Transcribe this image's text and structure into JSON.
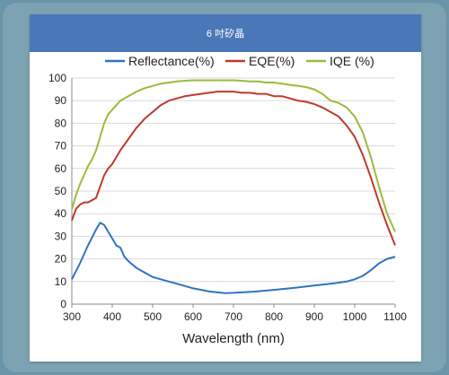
{
  "header": {
    "title": "6 吋矽晶"
  },
  "colors": {
    "header_bg": "#4a77b8",
    "reflectance": "#2e74c0",
    "eqe": "#c0392b",
    "iqe": "#9bbb3b"
  },
  "chart_data": {
    "type": "line",
    "title": "6 吋矽晶",
    "xlabel": "Wavelength (nm)",
    "ylabel": "",
    "xlim": [
      300,
      1100
    ],
    "ylim": [
      0,
      100
    ],
    "x_ticks": [
      "300",
      "400",
      "500",
      "600",
      "700",
      "800",
      "900",
      "1000",
      "1100"
    ],
    "y_ticks": [
      "0",
      "10",
      "20",
      "30",
      "40",
      "50",
      "60",
      "70",
      "80",
      "90",
      "100"
    ],
    "grid": true,
    "legend": "top",
    "series": [
      {
        "name": "Reflectance(%)",
        "color": "#2e74c0",
        "x": [
          300,
          320,
          340,
          360,
          370,
          380,
          390,
          400,
          410,
          420,
          430,
          440,
          460,
          480,
          500,
          520,
          540,
          560,
          580,
          600,
          620,
          640,
          660,
          680,
          700,
          750,
          800,
          850,
          900,
          950,
          980,
          1000,
          1020,
          1040,
          1060,
          1080,
          1100
        ],
        "y": [
          11,
          18,
          26,
          33,
          36,
          35,
          32,
          29,
          26,
          25,
          21,
          19,
          16,
          14,
          12,
          11,
          10,
          9,
          8,
          7,
          6.3,
          5.6,
          5.2,
          4.9,
          5,
          5.5,
          6.3,
          7.2,
          8.2,
          9.2,
          10,
          11,
          12.5,
          15,
          18,
          20,
          21
        ]
      },
      {
        "name": "EQE(%)",
        "color": "#c0392b",
        "x": [
          300,
          310,
          320,
          330,
          340,
          350,
          360,
          370,
          380,
          390,
          400,
          420,
          440,
          460,
          480,
          500,
          520,
          540,
          560,
          580,
          600,
          620,
          640,
          660,
          680,
          700,
          720,
          740,
          760,
          780,
          800,
          820,
          840,
          860,
          880,
          900,
          920,
          940,
          960,
          980,
          1000,
          1020,
          1040,
          1060,
          1080,
          1100
        ],
        "y": [
          37,
          42,
          44,
          45,
          45,
          46,
          47,
          52,
          57,
          60,
          62,
          68,
          73,
          78,
          82,
          85,
          88,
          90,
          91,
          92,
          92.5,
          93,
          93.5,
          94,
          94,
          94,
          93.5,
          93.5,
          93,
          93,
          92,
          92,
          91,
          90,
          89.5,
          88.5,
          87,
          85,
          83,
          79,
          74,
          66,
          56,
          45,
          35,
          26
        ]
      },
      {
        "name": "IQE (%)",
        "color": "#9bbb3b",
        "x": [
          300,
          310,
          320,
          330,
          340,
          350,
          360,
          370,
          380,
          390,
          400,
          420,
          440,
          460,
          480,
          500,
          520,
          540,
          560,
          580,
          600,
          620,
          640,
          660,
          680,
          700,
          720,
          740,
          760,
          780,
          800,
          820,
          840,
          860,
          880,
          900,
          920,
          940,
          960,
          980,
          1000,
          1020,
          1040,
          1060,
          1080,
          1100
        ],
        "y": [
          42,
          48,
          53,
          57,
          61,
          64,
          68,
          74,
          80,
          84,
          86,
          90,
          92,
          94,
          95.5,
          96.5,
          97.5,
          98,
          98.5,
          98.8,
          99,
          99,
          99,
          99,
          99,
          99,
          98.8,
          98.5,
          98.5,
          98,
          98,
          97.5,
          97,
          96.5,
          96,
          95,
          93,
          90,
          89,
          87,
          83,
          76,
          65,
          52,
          40,
          32
        ]
      }
    ]
  }
}
